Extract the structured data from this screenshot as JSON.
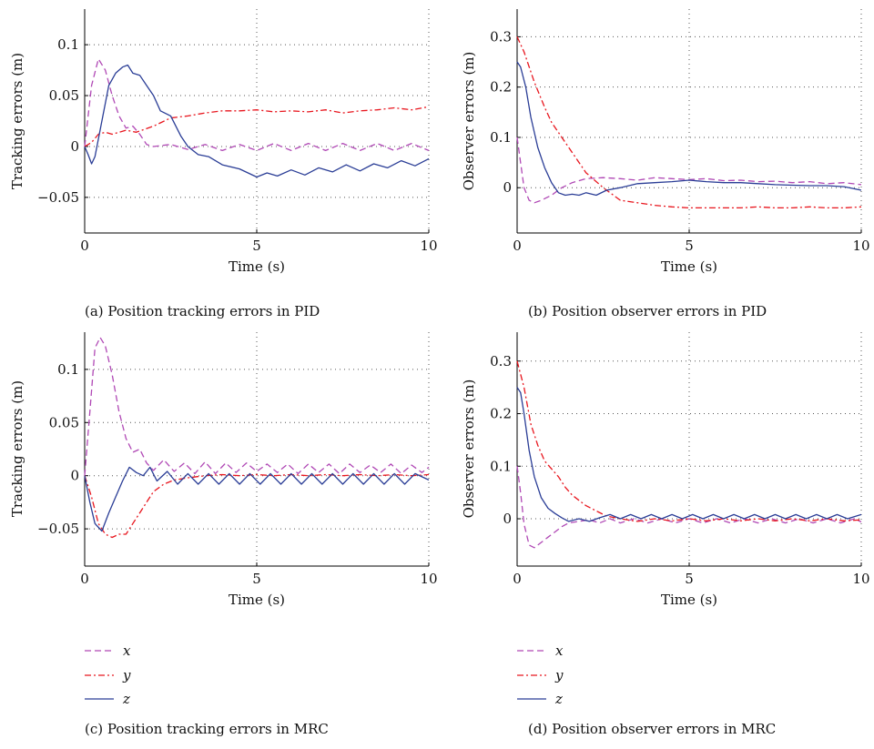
{
  "colors": {
    "x": "#b048b5",
    "y": "#e8161e",
    "z": "#2a3d96"
  },
  "legend": [
    {
      "key": "x",
      "label": "x",
      "dash": "7,4"
    },
    {
      "key": "y",
      "label": "y",
      "dash": "7,3,2,3"
    },
    {
      "key": "z",
      "label": "z",
      "dash": ""
    }
  ],
  "chart_data": [
    {
      "type": "line",
      "caption": "(a)  Position tracking errors in PID",
      "xlabel": "Time (s)",
      "ylabel": "Tracking errors (m)",
      "xlim": [
        0,
        10
      ],
      "ylim": [
        -0.085,
        0.135
      ],
      "xticks": [
        0,
        5,
        10
      ],
      "xtick_labels": [
        "0",
        "5",
        "10"
      ],
      "yticks": [
        -0.05,
        0,
        0.05,
        0.1
      ],
      "ytick_labels": [
        "−0.05",
        "0",
        "0.05",
        "0.1"
      ],
      "grid": true,
      "series": [
        {
          "key": "x",
          "name": "x",
          "x": [
            0,
            0.2,
            0.4,
            0.6,
            0.8,
            1.0,
            1.2,
            1.4,
            1.6,
            1.8,
            2.0,
            2.5,
            3.0,
            3.5,
            4.0,
            4.5,
            5.0,
            5.5,
            6.0,
            6.5,
            7.0,
            7.5,
            8.0,
            8.5,
            9.0,
            9.5,
            10.0
          ],
          "y": [
            0,
            0.06,
            0.086,
            0.075,
            0.05,
            0.03,
            0.018,
            0.02,
            0.012,
            0.002,
            0.0,
            0.002,
            -0.003,
            0.002,
            -0.004,
            0.002,
            -0.004,
            0.003,
            -0.004,
            0.003,
            -0.004,
            0.003,
            -0.004,
            0.003,
            -0.004,
            0.003,
            -0.004
          ]
        },
        {
          "key": "y",
          "name": "y",
          "x": [
            0,
            0.2,
            0.4,
            0.6,
            0.8,
            1.0,
            1.2,
            1.5,
            2.0,
            2.5,
            3.0,
            3.5,
            4.0,
            4.5,
            5.0,
            5.5,
            6.0,
            6.5,
            7.0,
            7.5,
            8.0,
            8.5,
            9.0,
            9.5,
            10.0
          ],
          "y": [
            0,
            0.004,
            0.012,
            0.014,
            0.012,
            0.014,
            0.016,
            0.014,
            0.02,
            0.028,
            0.03,
            0.033,
            0.035,
            0.035,
            0.036,
            0.034,
            0.035,
            0.034,
            0.036,
            0.033,
            0.035,
            0.036,
            0.038,
            0.036,
            0.039
          ]
        },
        {
          "key": "z",
          "name": "z",
          "x": [
            0,
            0.1,
            0.2,
            0.3,
            0.5,
            0.7,
            0.9,
            1.1,
            1.25,
            1.4,
            1.6,
            1.8,
            2.0,
            2.2,
            2.5,
            2.8,
            3.0,
            3.3,
            3.6,
            4.0,
            4.5,
            5.0,
            5.3,
            5.6,
            6.0,
            6.4,
            6.8,
            7.2,
            7.6,
            8.0,
            8.4,
            8.8,
            9.2,
            9.6,
            10.0
          ],
          "y": [
            0,
            -0.008,
            -0.017,
            -0.01,
            0.025,
            0.06,
            0.072,
            0.078,
            0.08,
            0.072,
            0.07,
            0.06,
            0.05,
            0.035,
            0.03,
            0.01,
            0.0,
            -0.008,
            -0.01,
            -0.018,
            -0.022,
            -0.03,
            -0.026,
            -0.029,
            -0.023,
            -0.028,
            -0.021,
            -0.025,
            -0.018,
            -0.024,
            -0.017,
            -0.021,
            -0.014,
            -0.019,
            -0.012
          ]
        }
      ]
    },
    {
      "type": "line",
      "caption": "(b)  Position observer errors in PID",
      "xlabel": "Time (s)",
      "ylabel": "Observer errors (m)",
      "xlim": [
        0,
        10
      ],
      "ylim": [
        -0.09,
        0.355
      ],
      "xticks": [
        0,
        5,
        10
      ],
      "xtick_labels": [
        "0",
        "5",
        "10"
      ],
      "yticks": [
        0,
        0.1,
        0.2,
        0.3
      ],
      "ytick_labels": [
        "0",
        "0.1",
        "0.2",
        "0.3"
      ],
      "grid": true,
      "series": [
        {
          "key": "x",
          "name": "x",
          "x": [
            0,
            0.1,
            0.2,
            0.35,
            0.5,
            0.7,
            1.0,
            1.3,
            1.6,
            2.0,
            2.5,
            3.0,
            3.5,
            4.0,
            4.5,
            5.0,
            5.5,
            6.0,
            6.5,
            7.0,
            7.5,
            8.0,
            8.5,
            9.0,
            9.5,
            10.0
          ],
          "y": [
            0.1,
            0.05,
            0.0,
            -0.025,
            -0.03,
            -0.025,
            -0.015,
            0.0,
            0.01,
            0.018,
            0.02,
            0.018,
            0.015,
            0.02,
            0.018,
            0.016,
            0.018,
            0.014,
            0.015,
            0.012,
            0.013,
            0.01,
            0.012,
            0.008,
            0.01,
            0.006
          ]
        },
        {
          "key": "y",
          "name": "y",
          "x": [
            0,
            0.2,
            0.5,
            0.8,
            1.0,
            1.3,
            1.6,
            2.0,
            2.5,
            3.0,
            3.5,
            4.0,
            4.5,
            5.0,
            5.5,
            6.0,
            6.5,
            7.0,
            7.5,
            8.0,
            8.5,
            9.0,
            9.5,
            10.0
          ],
          "y": [
            0.3,
            0.27,
            0.21,
            0.16,
            0.13,
            0.1,
            0.07,
            0.03,
            0.0,
            -0.025,
            -0.03,
            -0.035,
            -0.038,
            -0.04,
            -0.04,
            -0.04,
            -0.04,
            -0.038,
            -0.04,
            -0.04,
            -0.038,
            -0.04,
            -0.04,
            -0.038
          ]
        },
        {
          "key": "z",
          "name": "z",
          "x": [
            0,
            0.1,
            0.25,
            0.4,
            0.6,
            0.8,
            1.0,
            1.2,
            1.4,
            1.6,
            1.8,
            2.0,
            2.3,
            2.6,
            3.0,
            3.5,
            4.0,
            4.5,
            5.0,
            5.5,
            6.0,
            6.5,
            7.0,
            7.5,
            8.0,
            8.5,
            9.0,
            9.5,
            10.0
          ],
          "y": [
            0.25,
            0.24,
            0.2,
            0.14,
            0.08,
            0.04,
            0.01,
            -0.01,
            -0.015,
            -0.013,
            -0.015,
            -0.01,
            -0.015,
            -0.005,
            0.0,
            0.008,
            0.01,
            0.012,
            0.015,
            0.012,
            0.01,
            0.01,
            0.008,
            0.006,
            0.005,
            0.004,
            0.004,
            0.002,
            -0.005
          ]
        }
      ]
    },
    {
      "type": "line",
      "caption": "(c)  Position tracking errors in MRC",
      "xlabel": "Time (s)",
      "ylabel": "Tracking errors (m)",
      "xlim": [
        0,
        10
      ],
      "ylim": [
        -0.085,
        0.135
      ],
      "xticks": [
        0,
        5,
        10
      ],
      "xtick_labels": [
        "0",
        "5",
        "10"
      ],
      "yticks": [
        -0.05,
        0,
        0.05,
        0.1
      ],
      "ytick_labels": [
        "−0.05",
        "0",
        "0.05",
        "0.1"
      ],
      "grid": true,
      "series": [
        {
          "key": "x",
          "name": "x",
          "x": [
            0,
            0.15,
            0.3,
            0.45,
            0.6,
            0.8,
            1.0,
            1.2,
            1.4,
            1.6,
            1.8,
            2.0,
            2.3,
            2.6,
            2.9,
            3.2,
            3.5,
            3.8,
            4.1,
            4.4,
            4.7,
            5.0,
            5.3,
            5.6,
            5.9,
            6.2,
            6.5,
            6.8,
            7.1,
            7.4,
            7.7,
            8.0,
            8.3,
            8.6,
            8.9,
            9.2,
            9.5,
            9.8,
            10.0
          ],
          "y": [
            0,
            0.06,
            0.12,
            0.13,
            0.122,
            0.095,
            0.06,
            0.035,
            0.022,
            0.025,
            0.012,
            0.005,
            0.015,
            0.004,
            0.012,
            0.002,
            0.013,
            0.002,
            0.012,
            0.003,
            0.012,
            0.004,
            0.011,
            0.003,
            0.011,
            0.002,
            0.011,
            0.003,
            0.011,
            0.002,
            0.011,
            0.003,
            0.01,
            0.003,
            0.011,
            0.002,
            0.01,
            0.003,
            0.008
          ]
        },
        {
          "key": "y",
          "name": "y",
          "x": [
            0,
            0.2,
            0.4,
            0.6,
            0.8,
            1.0,
            1.2,
            1.4,
            1.6,
            1.8,
            2.0,
            2.3,
            2.6,
            3.0,
            3.5,
            4.0,
            4.5,
            5.0,
            5.5,
            6.0,
            6.5,
            7.0,
            7.5,
            8.0,
            8.5,
            9.0,
            9.5,
            10.0
          ],
          "y": [
            0,
            -0.02,
            -0.045,
            -0.055,
            -0.058,
            -0.055,
            -0.055,
            -0.045,
            -0.035,
            -0.025,
            -0.015,
            -0.008,
            -0.004,
            -0.002,
            0.0,
            0.001,
            0.0,
            0.001,
            0.0,
            0.001,
            0.0,
            0.001,
            0.0,
            0.001,
            0.0,
            0.001,
            0.0,
            0.001
          ]
        },
        {
          "key": "z",
          "name": "z",
          "x": [
            0,
            0.15,
            0.3,
            0.5,
            0.7,
            0.9,
            1.1,
            1.3,
            1.5,
            1.7,
            1.9,
            2.1,
            2.4,
            2.7,
            3.0,
            3.3,
            3.6,
            3.9,
            4.2,
            4.5,
            4.8,
            5.1,
            5.4,
            5.7,
            6.0,
            6.3,
            6.6,
            6.9,
            7.2,
            7.5,
            7.8,
            8.1,
            8.4,
            8.7,
            9.0,
            9.3,
            9.6,
            10.0
          ],
          "y": [
            0,
            -0.025,
            -0.045,
            -0.052,
            -0.035,
            -0.02,
            -0.005,
            0.008,
            0.003,
            0.0,
            0.008,
            -0.005,
            0.004,
            -0.008,
            0.002,
            -0.008,
            0.002,
            -0.008,
            0.002,
            -0.008,
            0.002,
            -0.008,
            0.002,
            -0.008,
            0.002,
            -0.008,
            0.002,
            -0.008,
            0.002,
            -0.008,
            0.002,
            -0.008,
            0.002,
            -0.008,
            0.002,
            -0.008,
            0.002,
            -0.004
          ]
        }
      ]
    },
    {
      "type": "line",
      "caption": "(d)  Position observer errors in MRC",
      "xlabel": "Time (s)",
      "ylabel": "Observer errors (m)",
      "xlim": [
        0,
        10
      ],
      "ylim": [
        -0.09,
        0.355
      ],
      "xticks": [
        0,
        5,
        10
      ],
      "xtick_labels": [
        "0",
        "5",
        "10"
      ],
      "yticks": [
        0,
        0.1,
        0.2,
        0.3
      ],
      "ytick_labels": [
        "0",
        "0.1",
        "0.2",
        "0.3"
      ],
      "grid": true,
      "series": [
        {
          "key": "x",
          "name": "x",
          "x": [
            0,
            0.1,
            0.2,
            0.35,
            0.5,
            0.7,
            0.9,
            1.1,
            1.3,
            1.5,
            1.8,
            2.1,
            2.4,
            2.7,
            3.0,
            3.4,
            3.8,
            4.2,
            4.6,
            5.0,
            5.4,
            5.8,
            6.2,
            6.6,
            7.0,
            7.4,
            7.8,
            8.2,
            8.6,
            9.0,
            9.4,
            9.8,
            10.0
          ],
          "y": [
            0.1,
            0.05,
            -0.01,
            -0.05,
            -0.055,
            -0.045,
            -0.035,
            -0.025,
            -0.015,
            -0.008,
            -0.005,
            -0.002,
            -0.008,
            0.0,
            -0.008,
            0.0,
            -0.008,
            0.0,
            -0.008,
            0.0,
            -0.008,
            0.0,
            -0.008,
            0.0,
            -0.008,
            0.0,
            -0.008,
            0.0,
            -0.008,
            0.0,
            -0.008,
            0.0,
            -0.006
          ]
        },
        {
          "key": "y",
          "name": "y",
          "x": [
            0,
            0.2,
            0.4,
            0.6,
            0.8,
            1.0,
            1.2,
            1.4,
            1.6,
            1.8,
            2.0,
            2.3,
            2.6,
            3.0,
            3.5,
            4.0,
            4.5,
            5.0,
            5.5,
            6.0,
            6.5,
            7.0,
            7.5,
            8.0,
            8.5,
            9.0,
            9.5,
            10.0
          ],
          "y": [
            0.3,
            0.25,
            0.18,
            0.14,
            0.11,
            0.095,
            0.08,
            0.06,
            0.045,
            0.035,
            0.025,
            0.015,
            0.005,
            0.0,
            -0.005,
            0.0,
            -0.004,
            0.0,
            -0.004,
            0.0,
            -0.004,
            0.0,
            -0.004,
            0.0,
            -0.004,
            0.0,
            -0.004,
            -0.002
          ]
        },
        {
          "key": "z",
          "name": "z",
          "x": [
            0,
            0.1,
            0.2,
            0.35,
            0.5,
            0.7,
            0.9,
            1.1,
            1.3,
            1.5,
            1.8,
            2.1,
            2.4,
            2.7,
            3.0,
            3.3,
            3.6,
            3.9,
            4.2,
            4.5,
            4.8,
            5.1,
            5.4,
            5.7,
            6.0,
            6.3,
            6.6,
            6.9,
            7.2,
            7.5,
            7.8,
            8.1,
            8.4,
            8.7,
            9.0,
            9.3,
            9.6,
            10.0
          ],
          "y": [
            0.25,
            0.24,
            0.2,
            0.13,
            0.08,
            0.04,
            0.02,
            0.01,
            0.002,
            -0.005,
            0.0,
            -0.005,
            0.002,
            0.008,
            0.0,
            0.008,
            0.0,
            0.008,
            0.0,
            0.008,
            0.0,
            0.008,
            0.0,
            0.008,
            0.0,
            0.008,
            0.0,
            0.008,
            0.0,
            0.008,
            0.0,
            0.008,
            0.0,
            0.008,
            0.0,
            0.008,
            0.0,
            0.008
          ]
        }
      ]
    }
  ]
}
